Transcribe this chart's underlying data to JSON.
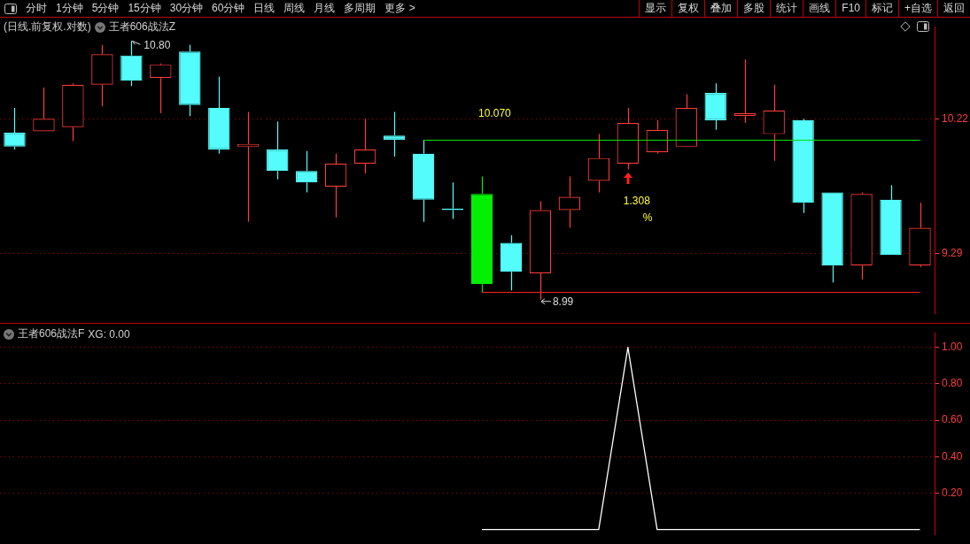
{
  "chart_data": [
    {
      "type": "other",
      "annotations": [
        "分时",
        "1分钟",
        "5分钟",
        "15分钟",
        "30分钟",
        "60分钟",
        "日线",
        "周线",
        "月线",
        "多周期",
        "更多 >"
      ]
    },
    {
      "type": "other",
      "annotations": [
        "显示",
        "复权",
        "叠加",
        "多股",
        "统计",
        "画线",
        "F10",
        "标记",
        "+自选",
        "返回"
      ]
    },
    {
      "type": "candlestick",
      "title": "(日线.前复权.对数)",
      "subtitle": "王者606战法Z",
      "categories": [
        null,
        null,
        null,
        null,
        null,
        null,
        null,
        null,
        null,
        null,
        null,
        null,
        null,
        null,
        null,
        null,
        null,
        null,
        null,
        null,
        null,
        null,
        null,
        null,
        null,
        null,
        null,
        null,
        null,
        null,
        null,
        null
      ],
      "ohlc": [
        [
          10.12,
          10.3,
          10.0,
          10.02
        ],
        [
          10.13,
          10.45,
          10.13,
          10.22
        ],
        [
          10.16,
          10.48,
          10.06,
          10.47
        ],
        [
          10.47,
          10.77,
          10.31,
          10.7
        ],
        [
          10.69,
          10.8,
          10.46,
          10.5
        ],
        [
          10.52,
          10.63,
          10.26,
          10.62
        ],
        [
          10.72,
          10.77,
          10.24,
          10.32
        ],
        [
          10.3,
          10.53,
          9.97,
          10.0
        ],
        [
          10.02,
          10.27,
          9.5,
          10.04
        ],
        [
          10.0,
          10.2,
          9.79,
          9.85
        ],
        [
          9.85,
          9.99,
          9.7,
          9.77
        ],
        [
          9.74,
          9.97,
          9.53,
          9.9
        ],
        [
          9.9,
          10.22,
          9.83,
          10.0
        ],
        [
          10.1,
          10.27,
          9.95,
          10.07
        ],
        [
          9.97,
          10.07,
          9.5,
          9.65
        ],
        [
          9.59,
          9.77,
          9.52,
          9.58
        ],
        [
          9.69,
          9.81,
          9.04,
          9.09
        ],
        [
          9.36,
          9.41,
          9.05,
          9.17
        ],
        [
          9.16,
          9.64,
          8.99,
          9.58
        ],
        [
          9.58,
          9.81,
          9.46,
          9.67
        ],
        [
          9.78,
          10.11,
          9.7,
          9.94
        ],
        [
          9.9,
          10.3,
          9.86,
          10.19
        ],
        [
          9.98,
          10.21,
          9.97,
          10.14
        ],
        [
          10.02,
          10.4,
          10.02,
          10.3
        ],
        [
          10.41,
          10.48,
          10.14,
          10.21
        ],
        [
          10.24,
          10.66,
          10.19,
          10.26
        ],
        [
          10.11,
          10.47,
          9.92,
          10.28
        ],
        [
          10.21,
          10.22,
          9.56,
          9.63
        ],
        [
          9.7,
          9.7,
          9.1,
          9.21
        ],
        [
          9.21,
          9.7,
          9.12,
          9.69
        ],
        [
          9.65,
          9.75,
          9.28,
          9.28
        ],
        [
          9.21,
          9.63,
          9.2,
          9.46
        ]
      ],
      "colors": [
        "#54fcfc",
        "#ff3c3c",
        "#ff3c3c",
        "#ff3c3c",
        "#54fcfc",
        "#ff3c3c",
        "#54fcfc",
        "#54fcfc",
        "#ff3c3c",
        "#54fcfc",
        "#54fcfc",
        "#ff3c3c",
        "#ff3c3c",
        "#54fcfc",
        "#54fcfc",
        "#54fcfc",
        "#00f000",
        "#54fcfc",
        "#ff3c3c",
        "#ff3c3c",
        "#ff3c3c",
        "#ff3c3c",
        "#ff3c3c",
        "#ff3c3c",
        "#54fcfc",
        "#ff3c3c",
        "#ff3c3c",
        "#54fcfc",
        "#54fcfc",
        "#ff3c3c",
        "#54fcfc",
        "#ff3c3c"
      ],
      "log": true,
      "ylim": [
        8.91,
        10.91
      ],
      "yticks": [
        9.29,
        10.22
      ],
      "grid": "y",
      "ref_lines": [
        {
          "axis": "y",
          "value": 10.07,
          "label": "10.070",
          "color": "#00e000"
        },
        {
          "axis": "y",
          "value": 9.04,
          "color": "#ff2020"
        }
      ],
      "annotations": [
        "10.80",
        "8.99",
        "1.308",
        "%"
      ]
    },
    {
      "type": "line",
      "title": "王者606战法F",
      "subtitle": "XG: 0.00",
      "categories": [
        null,
        null,
        null,
        null,
        null,
        null,
        null,
        null,
        null,
        null,
        null,
        null,
        null,
        null,
        null,
        null,
        null,
        null,
        null,
        null,
        null,
        null,
        null,
        null,
        null,
        null,
        null,
        null,
        null,
        null,
        null,
        null
      ],
      "series": [
        {
          "color": "#ffffff",
          "values": [
            null,
            null,
            null,
            null,
            null,
            null,
            null,
            null,
            null,
            null,
            null,
            null,
            null,
            null,
            null,
            null,
            0,
            0,
            0,
            0,
            0,
            1,
            0,
            0,
            0,
            0,
            0,
            0,
            0,
            0,
            0,
            0
          ]
        }
      ],
      "ylim": [
        -0.03,
        1.08
      ],
      "yticks": [
        {
          "value": 0.2,
          "label": "0.20"
        },
        {
          "value": 0.4,
          "label": "0.40"
        },
        {
          "value": 0.6,
          "label": "0.60"
        },
        {
          "value": 0.8,
          "label": "0.80"
        },
        {
          "value": 1,
          "label": "1.00"
        }
      ],
      "grid": "y"
    }
  ]
}
